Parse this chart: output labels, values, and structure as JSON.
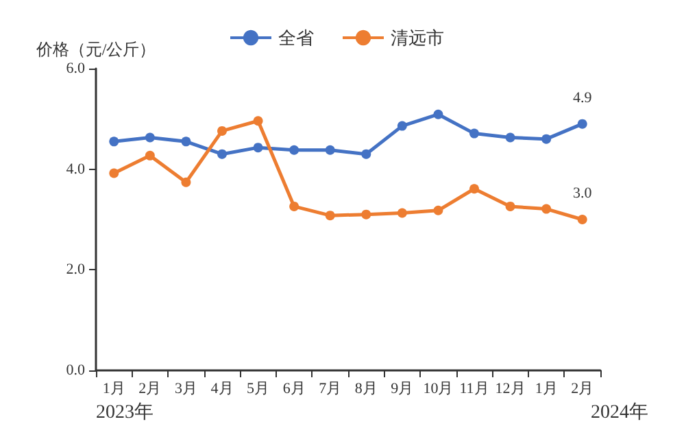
{
  "chart_data": {
    "type": "line",
    "ylabel": "价格（元/公斤）",
    "categories": [
      "1月",
      "2月",
      "3月",
      "4月",
      "5月",
      "6月",
      "7月",
      "8月",
      "9月",
      "10月",
      "11月",
      "12月",
      "1月",
      "2月"
    ],
    "series": [
      {
        "name": "全省",
        "color": "#4472c4",
        "values": [
          4.55,
          4.63,
          4.55,
          4.3,
          4.43,
          4.38,
          4.38,
          4.3,
          4.86,
          5.09,
          4.71,
          4.63,
          4.6,
          4.9
        ],
        "value_labels": [
          null,
          null,
          null,
          null,
          null,
          null,
          null,
          null,
          null,
          null,
          null,
          null,
          null,
          "4.9"
        ]
      },
      {
        "name": "清远市",
        "color": "#ed7d31",
        "values": [
          3.92,
          4.27,
          3.74,
          4.76,
          4.96,
          3.26,
          3.08,
          3.1,
          3.13,
          3.18,
          3.61,
          3.26,
          3.21,
          3.0
        ],
        "value_labels": [
          null,
          null,
          null,
          null,
          null,
          null,
          null,
          null,
          null,
          null,
          null,
          null,
          null,
          "3.0"
        ]
      }
    ],
    "ylim": [
      0,
      6
    ],
    "yticks": [
      {
        "value": 0,
        "label": "0.0"
      },
      {
        "value": 2,
        "label": "2.0"
      },
      {
        "value": 4,
        "label": "4.0"
      },
      {
        "value": 6,
        "label": "6.0"
      }
    ],
    "annotations": [
      "2023年",
      "2024年"
    ],
    "legend": "top",
    "grid": false,
    "marker": "circle",
    "line_style": "solid"
  }
}
